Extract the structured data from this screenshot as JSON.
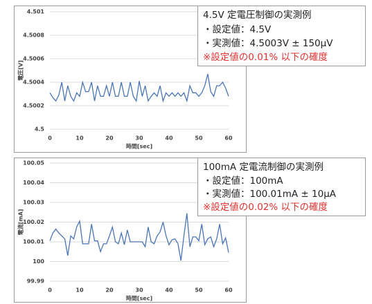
{
  "chart_data": [
    {
      "type": "line",
      "x_label": "時間[sec]",
      "y_label": "電圧[V]",
      "x": [
        0,
        1,
        2,
        3,
        4,
        5,
        6,
        7,
        8,
        9,
        10,
        11,
        12,
        13,
        14,
        15,
        16,
        17,
        18,
        19,
        20,
        21,
        22,
        23,
        24,
        25,
        26,
        27,
        28,
        29,
        30,
        31,
        32,
        33,
        34,
        35,
        36,
        37,
        38,
        39,
        40,
        41,
        42,
        43,
        44,
        45,
        46,
        47,
        48,
        49,
        50,
        51,
        52,
        53,
        54,
        55,
        56,
        57,
        58,
        59,
        60
      ],
      "series": [
        {
          "color": "#4a75b5",
          "values": [
            4.50031,
            4.50027,
            4.50024,
            4.50029,
            4.5004,
            4.50024,
            4.50037,
            4.50028,
            4.50024,
            4.50031,
            4.50028,
            4.5004,
            4.50032,
            4.50032,
            4.5004,
            4.50024,
            4.50037,
            4.50028,
            4.50028,
            4.50037,
            4.50028,
            4.5004,
            4.50028,
            4.50028,
            4.5004,
            4.50028,
            4.50028,
            4.5004,
            4.50028,
            4.50024,
            4.50041,
            4.50028,
            4.50037,
            4.50024,
            4.50028,
            4.50031,
            4.50028,
            4.50037,
            4.50024,
            4.50031,
            4.50028,
            4.50031,
            4.50028,
            4.50031,
            4.50028,
            4.50031,
            4.50024,
            4.50037,
            4.50031,
            4.50031,
            4.50028,
            4.50031,
            4.50037,
            4.50047,
            4.50032,
            4.50028,
            4.50037,
            4.50037,
            4.5004,
            4.50035,
            4.50028
          ]
        }
      ],
      "xlim": [
        0,
        60
      ],
      "xticks": [
        0,
        10,
        20,
        30,
        40,
        50,
        60
      ],
      "ylim": [
        4.5,
        4.501
      ],
      "yticks": [
        4.5,
        4.5002,
        4.5004,
        4.5006,
        4.5008,
        4.501
      ],
      "grid": true,
      "annotations": [
        {
          "text": "4.5V 定電圧制御の実測例",
          "color": "#222222"
        },
        {
          "text": "・設定値：4.5V",
          "color": "#222222"
        },
        {
          "text": "・実測値：4.5003V ± 150μV",
          "color": "#222222"
        },
        {
          "text": "※設定値の0.01% 以下の確度",
          "color": "#e03030"
        }
      ]
    },
    {
      "type": "line",
      "x_label": "時間[sec]",
      "y_label": "電流[mA]",
      "x": [
        0,
        1,
        2,
        3,
        4,
        5,
        6,
        7,
        8,
        9,
        10,
        11,
        12,
        13,
        14,
        15,
        16,
        17,
        18,
        19,
        20,
        21,
        22,
        23,
        24,
        25,
        26,
        27,
        28,
        29,
        30,
        31,
        32,
        33,
        34,
        35,
        36,
        37,
        38,
        39,
        40,
        41,
        42,
        43,
        44,
        45,
        46,
        47,
        48,
        49,
        50,
        51,
        52,
        53,
        54,
        55,
        56,
        57,
        58,
        59,
        60
      ],
      "series": [
        {
          "color": "#4a75b5",
          "values": [
            100.0105,
            100.0145,
            100.0165,
            100.0145,
            100.013,
            100.0115,
            100.003,
            100.013,
            100.0115,
            100.0175,
            100.0205,
            100.009,
            100.009,
            100.009,
            100.019,
            100.0105,
            100.0105,
            100.005,
            100.009,
            100.009,
            100.013,
            100.0175,
            100.01,
            100.009,
            100.0145,
            100.0085,
            100.016,
            100.01,
            100.01,
            100.01,
            100.01,
            100.01,
            100.0075,
            100.0175,
            100.01,
            100.009,
            100.013,
            100.015,
            100.02,
            100.013,
            100.0085,
            100.011,
            100.0115,
            100.009,
            100.0005,
            100.013,
            100.0245,
            100.0075,
            100.0125,
            100.0125,
            100.0105,
            100.019,
            100.0085,
            100.0115,
            100.0125,
            100.0075,
            100.0115,
            100.019,
            100.009,
            100.012,
            100.0045
          ]
        }
      ],
      "xlim": [
        0,
        60
      ],
      "xticks": [
        0,
        10,
        20,
        30,
        40,
        50,
        60
      ],
      "ylim": [
        99.99,
        100.05
      ],
      "yticks": [
        99.99,
        100,
        100.01,
        100.02,
        100.03,
        100.04,
        100.05
      ],
      "grid": true,
      "annotations": [
        {
          "text": "100mA 定電流制御の実測例",
          "color": "#222222"
        },
        {
          "text": "・設定値：100mA",
          "color": "#222222"
        },
        {
          "text": "・実測値：100.01mA ± 10μA",
          "color": "#222222"
        },
        {
          "text": "※設定値の0.02% 以下の確度",
          "color": "#e03030"
        }
      ]
    }
  ]
}
